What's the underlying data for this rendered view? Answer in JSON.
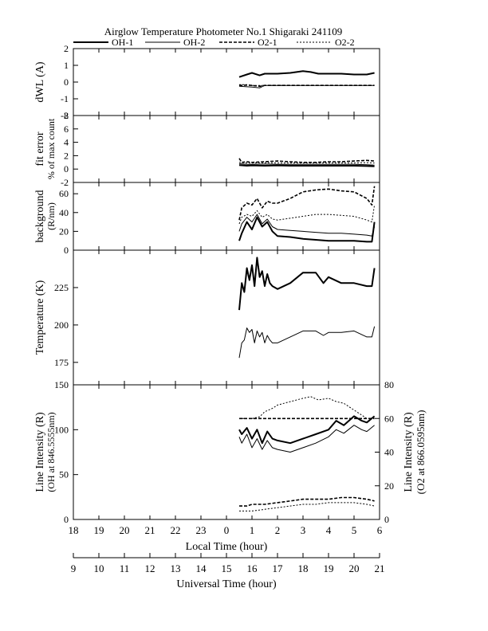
{
  "title": "Airglow Temperature Photometer No.1  Shigaraki  241109",
  "legend": [
    {
      "label": "OH-1",
      "style": "solid-thick",
      "color": "#000000"
    },
    {
      "label": "OH-2",
      "style": "solid-thin",
      "color": "#000000"
    },
    {
      "label": "O2-1",
      "style": "dashed-thick",
      "color": "#000000"
    },
    {
      "label": "O2-2",
      "style": "dashed-thin",
      "color": "#000000"
    }
  ],
  "x_axes": {
    "local": {
      "label": "Local Time (hour)",
      "range": [
        18,
        30
      ],
      "tick_labels": [
        "18",
        "19",
        "20",
        "21",
        "22",
        "23",
        "0",
        "1",
        "2",
        "3",
        "4",
        "5",
        "6"
      ]
    },
    "universal": {
      "label": "Universal Time (hour)",
      "range": [
        9,
        21
      ],
      "tick_labels": [
        "9",
        "10",
        "11",
        "12",
        "13",
        "14",
        "15",
        "16",
        "17",
        "18",
        "19",
        "20",
        "21"
      ]
    }
  },
  "chart_data": [
    {
      "type": "line",
      "panel": "dwl",
      "ylabel": "dWL (A)",
      "ylim": [
        -2,
        2
      ],
      "yticks": [
        -2,
        -1,
        0,
        1,
        2
      ],
      "x_units": "local time hour (24 = 0)",
      "series": [
        {
          "name": "OH-1",
          "x": [
            24.5,
            24.8,
            25.0,
            25.3,
            25.5,
            26.0,
            26.5,
            27.0,
            27.3,
            27.6,
            28.0,
            28.5,
            29.0,
            29.5,
            29.8
          ],
          "y": [
            0.3,
            0.45,
            0.55,
            0.4,
            0.5,
            0.5,
            0.55,
            0.65,
            0.6,
            0.5,
            0.5,
            0.5,
            0.45,
            0.45,
            0.55
          ]
        },
        {
          "name": "OH-2",
          "x": [
            24.5,
            25.0,
            25.3,
            25.5,
            26.0,
            27.0,
            28.0,
            29.0,
            29.8
          ],
          "y": [
            -0.25,
            -0.3,
            -0.35,
            -0.2,
            -0.2,
            -0.2,
            -0.2,
            -0.2,
            -0.2
          ]
        },
        {
          "name": "O2-1",
          "x": [
            24.5,
            24.8,
            25.0,
            25.3,
            25.5,
            26.0,
            26.5,
            27.0,
            28.0,
            29.0,
            29.8
          ],
          "y": [
            -0.2,
            -0.18,
            -0.2,
            -0.25,
            -0.2,
            -0.2,
            -0.2,
            -0.2,
            -0.2,
            -0.2,
            -0.2
          ]
        },
        {
          "name": "O2-2",
          "x": [
            24.5,
            24.8,
            25.0,
            25.5,
            26.0,
            26.5
          ],
          "y": [
            -0.15,
            -0.15,
            -0.2,
            -0.2,
            -0.2,
            -0.2
          ]
        }
      ]
    },
    {
      "type": "line",
      "panel": "fit_error",
      "ylabel": "fit error",
      "ylabel2": "% of max count",
      "ylim": [
        -2,
        8
      ],
      "yticks": [
        -2,
        0,
        2,
        4,
        6,
        8
      ],
      "series": [
        {
          "name": "OH-1",
          "x": [
            24.5,
            24.8,
            25.0,
            25.5,
            26.0,
            26.5,
            27.0,
            27.5,
            28.0,
            28.5,
            29.0,
            29.5,
            29.8
          ],
          "y": [
            0.6,
            0.5,
            0.55,
            0.5,
            0.55,
            0.5,
            0.5,
            0.5,
            0.5,
            0.5,
            0.5,
            0.45,
            0.4
          ]
        },
        {
          "name": "OH-2",
          "x": [
            24.5,
            24.8,
            25.0,
            25.5,
            26.0,
            26.5,
            27.0,
            27.5,
            28.0,
            28.5,
            29.0,
            29.5,
            29.8
          ],
          "y": [
            0.8,
            0.7,
            0.7,
            0.75,
            0.7,
            0.7,
            0.7,
            0.7,
            0.7,
            0.7,
            0.7,
            0.65,
            0.6
          ]
        },
        {
          "name": "O2-1",
          "x": [
            24.5,
            24.6,
            24.8,
            25.0,
            25.5,
            26.0,
            26.5,
            27.0,
            27.5,
            28.0,
            28.5,
            29.0,
            29.5,
            29.8
          ],
          "y": [
            1.6,
            1.0,
            1.1,
            1.0,
            1.1,
            1.2,
            1.1,
            1.0,
            1.0,
            1.1,
            1.1,
            1.2,
            1.3,
            1.2
          ]
        },
        {
          "name": "O2-2",
          "x": [
            24.5,
            24.8,
            25.0,
            25.5,
            26.0,
            26.5,
            27.0,
            27.5,
            28.0,
            28.5,
            29.0,
            29.5,
            29.8
          ],
          "y": [
            1.0,
            0.9,
            0.9,
            0.95,
            0.9,
            0.9,
            0.9,
            0.9,
            0.9,
            0.9,
            0.9,
            0.95,
            0.9
          ]
        }
      ]
    },
    {
      "type": "line",
      "panel": "background",
      "ylabel": "background",
      "ylabel2": "(R/nm)",
      "ylim": [
        0,
        72
      ],
      "yticks": [
        0,
        20,
        40,
        60
      ],
      "series": [
        {
          "name": "OH-1",
          "x": [
            24.5,
            24.6,
            24.8,
            25.0,
            25.2,
            25.4,
            25.6,
            25.8,
            26.0,
            26.5,
            27.0,
            27.5,
            28.0,
            28.5,
            29.0,
            29.5,
            29.7,
            29.8
          ],
          "y": [
            10,
            18,
            30,
            22,
            35,
            25,
            30,
            20,
            15,
            14,
            12,
            11,
            10,
            10,
            10,
            9,
            9,
            30
          ]
        },
        {
          "name": "OH-2",
          "x": [
            24.5,
            24.6,
            24.8,
            25.0,
            25.2,
            25.4,
            25.6,
            25.8,
            26.0,
            26.5,
            27.0,
            27.5,
            28.0,
            28.5,
            29.0,
            29.5,
            29.7,
            29.8
          ],
          "y": [
            20,
            28,
            35,
            30,
            38,
            28,
            33,
            25,
            22,
            21,
            20,
            19,
            18,
            18,
            17,
            16,
            15,
            25
          ]
        },
        {
          "name": "O2-1",
          "x": [
            24.5,
            24.6,
            24.8,
            25.0,
            25.2,
            25.4,
            25.6,
            25.8,
            26.0,
            26.5,
            27.0,
            27.5,
            28.0,
            28.5,
            29.0,
            29.5,
            29.7,
            29.8
          ],
          "y": [
            32,
            45,
            50,
            48,
            55,
            45,
            52,
            50,
            50,
            55,
            62,
            64,
            65,
            63,
            62,
            55,
            48,
            68
          ]
        },
        {
          "name": "O2-2",
          "x": [
            24.5,
            24.6,
            24.8,
            25.0,
            25.2,
            25.4,
            25.6,
            25.8,
            26.0,
            26.5,
            27.0,
            27.5,
            28.0,
            28.5,
            29.0,
            29.5,
            29.7,
            29.8
          ],
          "y": [
            28,
            35,
            38,
            36,
            42,
            35,
            38,
            33,
            32,
            34,
            36,
            38,
            38,
            37,
            36,
            32,
            30,
            48
          ]
        }
      ]
    },
    {
      "type": "line",
      "panel": "temperature",
      "ylabel": "Temperature (K)",
      "ylim": [
        160,
        250
      ],
      "yticks": [
        175,
        200,
        225
      ],
      "series": [
        {
          "name": "OH-1",
          "x": [
            24.5,
            24.6,
            24.7,
            24.8,
            24.9,
            25.0,
            25.1,
            25.2,
            25.3,
            25.4,
            25.5,
            25.6,
            25.7,
            25.8,
            26.0,
            26.5,
            27.0,
            27.5,
            27.8,
            28.0,
            28.5,
            29.0,
            29.5,
            29.7,
            29.8
          ],
          "y": [
            210,
            228,
            222,
            238,
            230,
            240,
            226,
            245,
            232,
            236,
            226,
            234,
            228,
            226,
            224,
            228,
            235,
            235,
            228,
            232,
            228,
            228,
            226,
            226,
            238
          ]
        },
        {
          "name": "OH-2",
          "x": [
            24.5,
            24.6,
            24.7,
            24.8,
            24.9,
            25.0,
            25.1,
            25.2,
            25.3,
            25.4,
            25.5,
            25.6,
            25.7,
            25.8,
            26.0,
            26.5,
            27.0,
            27.5,
            27.8,
            28.0,
            28.5,
            29.0,
            29.5,
            29.7,
            29.8
          ],
          "y": [
            178,
            188,
            190,
            198,
            195,
            197,
            188,
            196,
            192,
            195,
            188,
            193,
            190,
            188,
            188,
            192,
            196,
            196,
            193,
            195,
            195,
            196,
            192,
            192,
            199
          ]
        }
      ]
    },
    {
      "type": "line",
      "panel": "line_intensity",
      "ylabel": "Line Intensity (R)",
      "ylabel2": "(OH at 846.5555nm)",
      "ylabel_right": "Line Intensity (R)",
      "ylabel_right2": "(O2 at 866.0595nm)",
      "ylim": [
        0,
        150
      ],
      "yticks": [
        0,
        50,
        100,
        150
      ],
      "ylim_right": [
        0,
        80
      ],
      "yticks_right": [
        0,
        20,
        40,
        60,
        80
      ],
      "series": [
        {
          "name": "OH-1",
          "axis": "left",
          "x": [
            24.5,
            24.6,
            24.8,
            25.0,
            25.2,
            25.4,
            25.6,
            25.8,
            26.0,
            26.5,
            27.0,
            27.5,
            28.0,
            28.3,
            28.6,
            29.0,
            29.3,
            29.5,
            29.8
          ],
          "y": [
            100,
            95,
            102,
            90,
            100,
            85,
            98,
            90,
            88,
            85,
            90,
            95,
            100,
            110,
            105,
            115,
            110,
            108,
            115
          ]
        },
        {
          "name": "OH-2",
          "axis": "left",
          "x": [
            24.5,
            24.6,
            24.8,
            25.0,
            25.2,
            25.4,
            25.6,
            25.8,
            26.0,
            26.5,
            27.0,
            27.5,
            28.0,
            28.3,
            28.6,
            29.0,
            29.3,
            29.5,
            29.8
          ],
          "y": [
            92,
            85,
            95,
            80,
            90,
            78,
            88,
            80,
            78,
            75,
            80,
            85,
            92,
            100,
            96,
            105,
            100,
            98,
            105
          ]
        },
        {
          "name": "O2-1",
          "axis": "right",
          "x": [
            24.5,
            24.8,
            25.0,
            25.5,
            26.0,
            26.5,
            27.0,
            27.5,
            28.0,
            28.5,
            29.0,
            29.5,
            29.8
          ],
          "y": [
            60,
            60,
            60,
            60,
            60,
            60,
            60,
            60,
            60,
            60,
            60,
            60,
            60
          ]
        },
        {
          "name": "O2-2",
          "axis": "right",
          "x": [
            24.5,
            25.0,
            25.3,
            25.5,
            25.8,
            26.0,
            26.5,
            27.0,
            27.3,
            27.6,
            28.0,
            28.3,
            28.6,
            29.0,
            29.3,
            29.5
          ],
          "y": [
            60,
            60,
            61,
            64,
            66,
            68,
            70,
            72,
            73,
            71,
            72,
            70,
            69,
            65,
            62,
            60
          ]
        },
        {
          "name": "O2-1 low",
          "axis": "right",
          "x": [
            24.5,
            24.8,
            25.0,
            25.5,
            26.0,
            26.5,
            27.0,
            27.5,
            28.0,
            28.5,
            29.0,
            29.5,
            29.8
          ],
          "y": [
            8,
            8,
            9,
            9,
            10,
            11,
            12,
            12,
            12,
            13,
            13,
            12,
            11
          ]
        },
        {
          "name": "O2-2 low",
          "axis": "right",
          "x": [
            24.5,
            24.8,
            25.0,
            25.5,
            26.0,
            26.5,
            27.0,
            27.5,
            28.0,
            28.5,
            29.0,
            29.5,
            29.8
          ],
          "y": [
            5,
            5,
            5,
            6,
            7,
            8,
            9,
            9,
            10,
            10,
            10,
            9,
            8
          ]
        }
      ]
    }
  ]
}
